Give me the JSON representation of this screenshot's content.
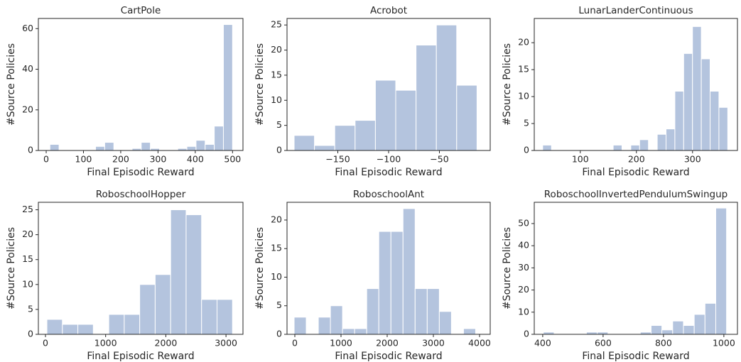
{
  "chart_data": [
    {
      "type": "histogram",
      "title": "CartPole",
      "xlabel": "Final Episodic Reward",
      "ylabel": "#Source Policies",
      "color": "#b4c4de",
      "bins": [
        10,
        34.5,
        59,
        83.5,
        108,
        132.5,
        157,
        181.5,
        206,
        230.5,
        255,
        279.5,
        304,
        328.5,
        353,
        377.5,
        402,
        426.5,
        451,
        475.5,
        500
      ],
      "counts": [
        3,
        0,
        0,
        0,
        0,
        2,
        4,
        0,
        0,
        1,
        4,
        1,
        0,
        0,
        1,
        2,
        5,
        3,
        12,
        62
      ],
      "xlim": [
        -21,
        528
      ],
      "ylim": [
        0,
        65
      ],
      "xticks": [
        0,
        100,
        200,
        300,
        400,
        500
      ],
      "yticks": [
        0,
        20,
        40,
        60
      ]
    },
    {
      "type": "histogram",
      "title": "Acrobot",
      "xlabel": "Final Episodic Reward",
      "ylabel": "#Source Policies",
      "color": "#b4c4de",
      "bins": [
        -193,
        -173,
        -153,
        -133,
        -113,
        -93,
        -73,
        -53,
        -33,
        -13
      ],
      "counts": [
        3,
        1,
        5,
        6,
        14,
        12,
        21,
        25,
        13
      ],
      "xlim": [
        -200,
        0
      ],
      "ylim": [
        0,
        26.3
      ],
      "xticks": [
        {
          "value": -150,
          "label": "−150"
        },
        {
          "value": -100,
          "label": "−100"
        },
        {
          "value": -50,
          "label": "−50"
        }
      ],
      "yticks": [
        0,
        5,
        10,
        15,
        20,
        25
      ]
    },
    {
      "type": "histogram",
      "title": "LunarLanderContinuous",
      "xlabel": "Final Episodic Reward",
      "ylabel": "#Source Policies",
      "color": "#b4c4de",
      "bins": [
        33,
        48.7,
        64.4,
        80.1,
        95.8,
        111.5,
        127.2,
        142.9,
        158.6,
        174.3,
        190,
        205.7,
        221.4,
        237.1,
        252.8,
        268.5,
        284.2,
        299.9,
        315.6,
        331.3,
        347,
        362.7
      ],
      "counts": [
        1,
        0,
        0,
        0,
        0,
        0,
        0,
        0,
        1,
        0,
        1,
        2,
        0,
        3,
        4,
        11,
        18,
        23,
        17,
        11,
        8
      ],
      "xlim": [
        18,
        380
      ],
      "ylim": [
        0,
        24.5
      ],
      "xticks": [
        100,
        200,
        300
      ],
      "yticks": [
        0,
        5,
        10,
        15,
        20
      ]
    },
    {
      "type": "histogram",
      "title": "RoboschoolHopper",
      "xlabel": "Final Episodic Reward",
      "ylabel": "#Source Policies",
      "color": "#b4c4de",
      "bins": [
        24,
        281,
        538,
        795,
        1052,
        1309,
        1566,
        1823,
        2080,
        2337,
        2594,
        2851,
        3108
      ],
      "counts": [
        3,
        2,
        2,
        0,
        4,
        4,
        10,
        12,
        25,
        24,
        7,
        7
      ],
      "xlim": [
        -118,
        3282
      ],
      "ylim": [
        0,
        26.5
      ],
      "xticks": [
        0,
        1000,
        2000,
        3000
      ],
      "yticks": [
        0,
        5,
        10,
        15,
        20,
        25
      ]
    },
    {
      "type": "histogram",
      "title": "RoboschoolAnt",
      "xlabel": "Final Episodic Reward",
      "ylabel": "#Source Policies",
      "color": "#b4c4de",
      "bins": [
        -15,
        247,
        509,
        771,
        1033,
        1295,
        1557,
        1819,
        2081,
        2343,
        2605,
        2867,
        3129,
        3391,
        3653,
        3915
      ],
      "counts": [
        3,
        0,
        3,
        5,
        1,
        1,
        8,
        18,
        18,
        22,
        8,
        8,
        4,
        0,
        1
      ],
      "xlim": [
        -169,
        4231
      ],
      "ylim": [
        0,
        23.1
      ],
      "xticks": [
        0,
        1000,
        2000,
        3000,
        4000
      ],
      "yticks": [
        0,
        5,
        10,
        15,
        20
      ]
    },
    {
      "type": "histogram",
      "title": "RoboschoolInvertedPendulumSwingup",
      "xlabel": "Final Episodic Reward",
      "ylabel": "#Source Policies",
      "color": "#b4c4de",
      "bins": [
        402,
        437.7,
        473.4,
        509.1,
        544.8,
        580.5,
        616.2,
        651.9,
        687.6,
        723.3,
        759,
        794.7,
        830.4,
        866.1,
        901.8,
        937.5,
        973.2,
        1008.9
      ],
      "counts": [
        1,
        0,
        0,
        0,
        1,
        1,
        0,
        0,
        0,
        1,
        4,
        2,
        6,
        4,
        9,
        14,
        57
      ],
      "xlim": [
        372,
        1045
      ],
      "ylim": [
        0,
        59.6
      ],
      "xticks": [
        400,
        600,
        800,
        1000
      ],
      "yticks": [
        0,
        10,
        20,
        30,
        40,
        50
      ]
    }
  ]
}
